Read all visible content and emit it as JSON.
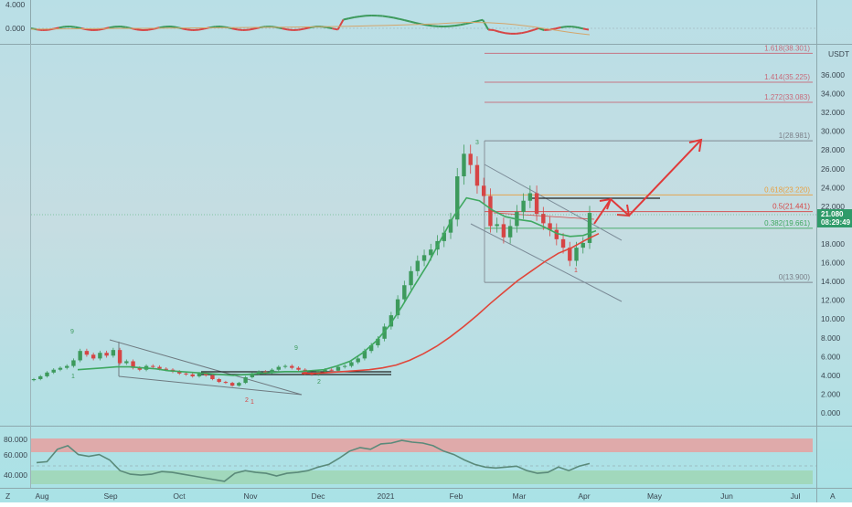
{
  "colors": {
    "up_candle": "#3d9a5c",
    "down_candle": "#d64545",
    "ma_fast": "#3fa860",
    "ma_slow": "#e0463a",
    "fib_gray": "#7a7f88",
    "fib_pink": "#c76a7a",
    "fib_orange": "#e8a040",
    "fib_red": "#d64545",
    "fib_green": "#3fa860",
    "arrow": "#e03a3a",
    "rsi_line": "#5a8a7a",
    "rsi_over": "#e7a0a0",
    "rsi_under": "#9fd6b4",
    "price_tag_bg": "#2f9b6a"
  },
  "top_panel": {
    "y_ticks": [
      "4.000",
      "0.000"
    ]
  },
  "price_axis": {
    "unit": "USDT",
    "ticks": [
      "36.000",
      "34.000",
      "32.000",
      "30.000",
      "28.000",
      "26.000",
      "24.000",
      "22.000",
      "18.000",
      "16.000",
      "14.000",
      "12.000",
      "10.000",
      "8.000",
      "6.000",
      "4.000",
      "2.000",
      "0.000"
    ],
    "current_price": "21.080",
    "countdown": "08:29:49"
  },
  "fib_levels": [
    {
      "label": "1.618(38.301)",
      "price": 38.301,
      "color": "fib_pink"
    },
    {
      "label": "1.414(35.225)",
      "price": 35.225,
      "color": "fib_pink"
    },
    {
      "label": "1.272(33.083)",
      "price": 33.083,
      "color": "fib_pink"
    },
    {
      "label": "1(28.981)",
      "price": 28.981,
      "color": "fib_gray"
    },
    {
      "label": "0.618(23.220)",
      "price": 23.22,
      "color": "fib_orange"
    },
    {
      "label": "0.5(21.441)",
      "price": 21.441,
      "color": "fib_red"
    },
    {
      "label": "0.382(19.661)",
      "price": 19.661,
      "color": "fib_green"
    },
    {
      "label": "0(13.900)",
      "price": 13.9,
      "color": "fib_gray"
    }
  ],
  "time_axis": {
    "labels": [
      "Aug",
      "Sep",
      "Oct",
      "Nov",
      "Dec",
      "2021",
      "Feb",
      "Mar",
      "Apr",
      "May",
      "Jun",
      "Jul"
    ],
    "corner_left": "Z",
    "corner_right": "A"
  },
  "rsi_panel": {
    "y_ticks": [
      "80.000",
      "60.000",
      "40.000"
    ]
  },
  "chart_data": {
    "type": "candlestick",
    "x_unit": "weeks from first candle (start late Jul 2020)",
    "series": [
      {
        "name": "price",
        "values": [
          3.6,
          3.9,
          4.3,
          4.6,
          4.8,
          5.0,
          5.6,
          6.6,
          6.2,
          5.8,
          6.4,
          6.1,
          6.7,
          5.3,
          5.5,
          4.8,
          4.6,
          5.0,
          4.9,
          4.7,
          4.6,
          4.4,
          4.2,
          4.1,
          3.9,
          4.2,
          4.0,
          3.6,
          3.3,
          3.2,
          2.9,
          3.2,
          3.8,
          4.2,
          4.4,
          4.3,
          4.6,
          4.9,
          5.0,
          4.8,
          4.6,
          4.2,
          4.1,
          4.4,
          4.6,
          4.5,
          4.9,
          5.0,
          5.4,
          5.8,
          6.6,
          7.2,
          7.9,
          9.2,
          10.4,
          12.1,
          13.6,
          15.1,
          16.2,
          16.8,
          17.4,
          18.3,
          19.2,
          20.6,
          25.2,
          27.6,
          26.4,
          24.2,
          23.1,
          19.9,
          20.1,
          18.7,
          19.9,
          21.4,
          22.6,
          23.4,
          21.2,
          20.2,
          19.5,
          18.5,
          17.6,
          16.2,
          17.6,
          18.1,
          21.3
        ]
      }
    ],
    "ma_fast": [
      4.6,
      4.7,
      4.8,
      4.9,
      4.9,
      4.8,
      4.7,
      4.5,
      4.4,
      4.3,
      4.2,
      4.1,
      4.0,
      4.1,
      4.2,
      4.3,
      4.4,
      4.4,
      4.5,
      4.6,
      5.0,
      5.5,
      6.4,
      7.6,
      9.2,
      11.3,
      13.6,
      15.8,
      18.4,
      20.9,
      22.9,
      22.6,
      21.6,
      20.9,
      20.6,
      20.4,
      19.8,
      19.1,
      18.8,
      18.9,
      19.4
    ],
    "ma_slow": [
      4.2,
      4.2,
      4.3,
      4.4,
      4.5,
      4.6,
      4.8,
      5.1,
      5.6,
      6.3,
      7.1,
      8.1,
      9.2,
      10.4,
      11.7,
      12.9,
      14.1,
      15.1,
      16.1,
      17.0,
      17.6,
      18.4,
      19.1
    ],
    "rsi": [
      57,
      58,
      72,
      76,
      66,
      64,
      66,
      60,
      48,
      44,
      43,
      44,
      47,
      46,
      44,
      42,
      40,
      38,
      36,
      45,
      48,
      46,
      45,
      42,
      45,
      46,
      48,
      52,
      55,
      62,
      70,
      74,
      72,
      78,
      79,
      82,
      80,
      79,
      76,
      70,
      66,
      60,
      55,
      52,
      51,
      52,
      53,
      48,
      45,
      46,
      52,
      48,
      53,
      56
    ],
    "y_range": [
      -0.5,
      40
    ],
    "rsi_range": [
      25,
      90
    ],
    "annotations": [
      "9",
      "3",
      "9",
      "1",
      "2",
      "2",
      "1",
      "1"
    ]
  }
}
